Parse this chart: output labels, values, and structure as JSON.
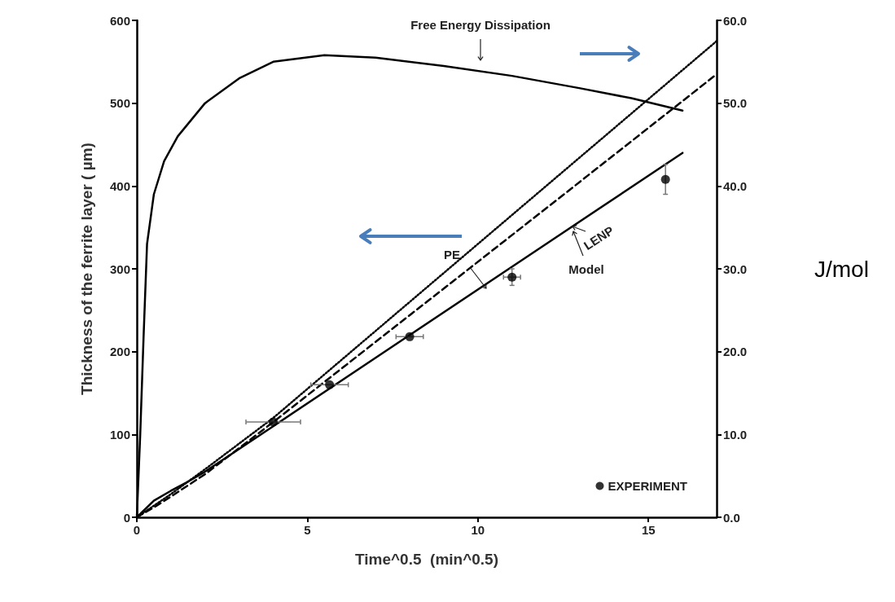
{
  "chart_data": {
    "type": "line",
    "xlabel": "Time^0.5  (min^0.5)",
    "ylabel": "Thickness of the ferrite layer ( µm)",
    "y2label": "J/mol",
    "xlim": [
      0,
      17
    ],
    "xticks": [
      0,
      5,
      10,
      15
    ],
    "ylim": [
      0,
      600
    ],
    "yticks": [
      0,
      100,
      200,
      300,
      400,
      500,
      600
    ],
    "y2lim": [
      0,
      60
    ],
    "y2ticks": [
      {
        "value": 0,
        "label": "0.0"
      },
      {
        "value": 10,
        "label": "10.0"
      },
      {
        "value": 20,
        "label": "20.0"
      },
      {
        "value": 30,
        "label": "30.0"
      },
      {
        "value": 40,
        "label": "40.0"
      },
      {
        "value": 50,
        "label": "50.0"
      },
      {
        "value": 60,
        "label": "60.0"
      }
    ],
    "grid": false,
    "legend": "bottom right",
    "series": [
      {
        "color": "#000000",
        "line_style": "solid",
        "marker": "none",
        "x": [
          0,
          0.5,
          1,
          1.5,
          2,
          4,
          8,
          12,
          16
        ],
        "values": [
          0,
          20,
          32,
          43,
          55,
          110,
          220,
          330,
          440
        ]
      },
      {
        "color": "#000000",
        "line_style": "dashed",
        "marker": "none",
        "x": [
          0,
          0.5,
          1,
          2,
          4,
          8,
          12,
          17
        ],
        "values": [
          0,
          12,
          25,
          52,
          115,
          244,
          373,
          535
        ]
      },
      {
        "color": "#000000",
        "line_style": "dotted",
        "marker": "none",
        "x": [
          0,
          1,
          2,
          4,
          8,
          12,
          17
        ],
        "values": [
          0,
          28,
          58,
          120,
          260,
          400,
          575
        ]
      },
      {
        "color": "#000000",
        "line_style": "solid",
        "marker": "none",
        "axis": "y2",
        "x": [
          0,
          0.1,
          0.2,
          0.3,
          0.5,
          0.8,
          1.2,
          2,
          3,
          4,
          5.5,
          7,
          9,
          11,
          13,
          14.5,
          16
        ],
        "values": [
          0,
          10,
          22,
          33,
          39,
          43,
          46,
          50,
          53,
          55,
          55.8,
          55.5,
          54.5,
          53.3,
          51.8,
          50.6,
          49.1
        ]
      },
      {
        "type": "scatter",
        "name": "EXPERIMENT",
        "color": "#000000",
        "marker": "circle",
        "x": [
          4,
          5.65,
          8,
          11,
          15.5
        ],
        "values": [
          115,
          160,
          218,
          290,
          408
        ],
        "xerrors": [
          0.8,
          0.55,
          0.4,
          0.25,
          null
        ],
        "errors": [
          null,
          null,
          null,
          10,
          18
        ]
      }
    ],
    "annotations": [
      "Free Energy Dissipation",
      "PE",
      "LENP",
      "Model"
    ]
  }
}
